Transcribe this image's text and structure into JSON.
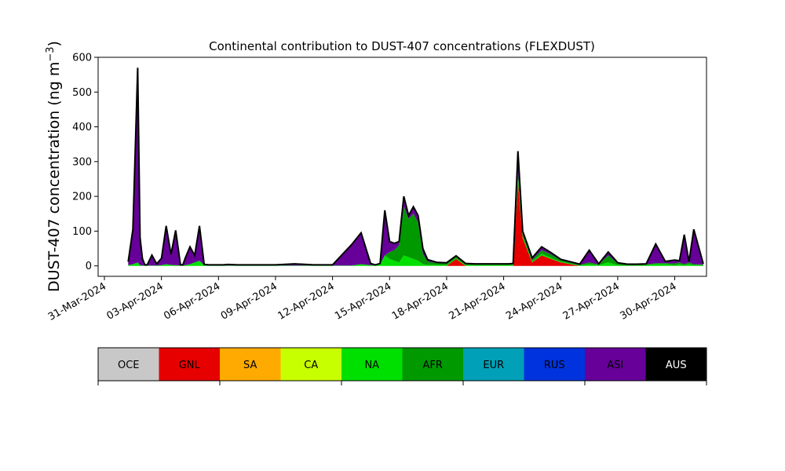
{
  "chart_data": {
    "type": "area",
    "stacked": true,
    "title": "Continental contribution to DUST-407 concentrations (FLEXDUST)",
    "ylabel": "DUST-407 concentration (ng m",
    "ylabel_sup": "−3",
    "ylabel_close": ")",
    "xlabel": "",
    "ylim": [
      -30,
      600
    ],
    "xlim": [
      "2024-03-31",
      "2024-05-02"
    ],
    "yticks": [
      0,
      100,
      200,
      300,
      400,
      500,
      600
    ],
    "xticks": [
      "31-Mar-2024",
      "03-Apr-2024",
      "06-Apr-2024",
      "09-Apr-2024",
      "12-Apr-2024",
      "15-Apr-2024",
      "18-Apr-2024",
      "21-Apr-2024",
      "24-Apr-2024",
      "27-Apr-2024",
      "30-Apr-2024"
    ],
    "grid": false,
    "colorbar_legend": [
      {
        "name": "OCE",
        "color": "#c8c8c8",
        "text_color": "#000000"
      },
      {
        "name": "GNL",
        "color": "#e60000",
        "text_color": "#000000"
      },
      {
        "name": "SA",
        "color": "#ffaa00",
        "text_color": "#000000"
      },
      {
        "name": "CA",
        "color": "#c8ff00",
        "text_color": "#000000"
      },
      {
        "name": "NA",
        "color": "#00e000",
        "text_color": "#000000"
      },
      {
        "name": "AFR",
        "color": "#009900",
        "text_color": "#000000"
      },
      {
        "name": "EUR",
        "color": "#00a0b8",
        "text_color": "#000000"
      },
      {
        "name": "RUS",
        "color": "#0033dd",
        "text_color": "#000000"
      },
      {
        "name": "ASI",
        "color": "#660099",
        "text_color": "#000000"
      },
      {
        "name": "AUS",
        "color": "#000000",
        "text_color": "#ffffff"
      }
    ],
    "x_dates": [
      "2024-04-01T06",
      "2024-04-01T12",
      "2024-04-01T18",
      "2024-04-01T21",
      "2024-04-02T00",
      "2024-04-02T03",
      "2024-04-02T06",
      "2024-04-02T12",
      "2024-04-02T18",
      "2024-04-03T00",
      "2024-04-03T06",
      "2024-04-03T12",
      "2024-04-03T18",
      "2024-04-04T00",
      "2024-04-04T03",
      "2024-04-04T06",
      "2024-04-04T12",
      "2024-04-04T18",
      "2024-04-05T00",
      "2024-04-05T06",
      "2024-04-05T12",
      "2024-04-05T18",
      "2024-04-06T00",
      "2024-04-06T06",
      "2024-04-06T12",
      "2024-04-07T00",
      "2024-04-07T12",
      "2024-04-08T00",
      "2024-04-08T12",
      "2024-04-09T00",
      "2024-04-10T00",
      "2024-04-11T00",
      "2024-04-12T00",
      "2024-04-13T00",
      "2024-04-13T12",
      "2024-04-14T00",
      "2024-04-14T06",
      "2024-04-14T12",
      "2024-04-14T18",
      "2024-04-15T00",
      "2024-04-15T06",
      "2024-04-15T12",
      "2024-04-15T18",
      "2024-04-16T00",
      "2024-04-16T06",
      "2024-04-16T12",
      "2024-04-16T18",
      "2024-04-17T00",
      "2024-04-17T12",
      "2024-04-18T00",
      "2024-04-18T12",
      "2024-04-19T00",
      "2024-04-19T12",
      "2024-04-20T00",
      "2024-04-20T12",
      "2024-04-21T00",
      "2024-04-21T06",
      "2024-04-21T12",
      "2024-04-21T18",
      "2024-04-22T00",
      "2024-04-22T12",
      "2024-04-23T00",
      "2024-04-23T12",
      "2024-04-24T00",
      "2024-04-25T00",
      "2024-04-25T12",
      "2024-04-26T00",
      "2024-04-26T12",
      "2024-04-27T00",
      "2024-04-27T12",
      "2024-04-28T00",
      "2024-04-28T12",
      "2024-04-29T00",
      "2024-04-29T12",
      "2024-04-30T00",
      "2024-04-30T06",
      "2024-04-30T12",
      "2024-04-30T18",
      "2024-05-01T00",
      "2024-05-01T12"
    ],
    "series": [
      {
        "name": "GNL",
        "values": [
          0,
          0,
          0,
          0,
          0,
          0,
          0,
          0,
          0,
          0,
          0,
          0,
          0,
          0,
          0,
          0,
          0,
          0,
          0,
          0,
          0,
          0,
          0,
          0,
          0,
          0,
          0,
          0,
          0,
          0,
          0,
          0,
          0,
          0,
          0,
          0,
          0,
          0,
          0,
          0,
          0,
          0,
          0,
          0,
          0,
          0,
          0,
          0,
          0,
          0,
          20,
          0,
          0,
          0,
          0,
          0,
          0,
          0,
          240,
          80,
          10,
          30,
          20,
          10,
          0,
          0,
          0,
          0,
          0,
          0,
          0,
          0,
          0,
          0,
          0,
          0,
          0,
          0,
          0,
          0
        ]
      },
      {
        "name": "NA",
        "values": [
          2,
          5,
          10,
          2,
          1,
          1,
          1,
          1,
          1,
          2,
          5,
          3,
          2,
          1,
          1,
          2,
          5,
          10,
          15,
          2,
          1,
          1,
          1,
          1,
          1,
          1,
          1,
          1,
          1,
          1,
          1,
          1,
          1,
          1,
          5,
          2,
          1,
          5,
          30,
          20,
          15,
          10,
          30,
          25,
          20,
          15,
          5,
          3,
          3,
          2,
          2,
          2,
          2,
          2,
          2,
          2,
          2,
          3,
          10,
          5,
          3,
          5,
          3,
          2,
          1,
          5,
          2,
          10,
          2,
          1,
          1,
          2,
          5,
          5,
          2,
          5,
          2,
          5,
          2,
          2
        ]
      },
      {
        "name": "AFR",
        "values": [
          0,
          0,
          0,
          0,
          0,
          0,
          0,
          0,
          0,
          0,
          0,
          0,
          0,
          0,
          0,
          0,
          0,
          0,
          0,
          0,
          0,
          0,
          0,
          0,
          0,
          0,
          0,
          0,
          0,
          0,
          0,
          0,
          0,
          0,
          0,
          0,
          0,
          0,
          0,
          20,
          30,
          50,
          140,
          110,
          130,
          110,
          30,
          10,
          5,
          5,
          5,
          3,
          2,
          2,
          2,
          2,
          2,
          2,
          20,
          10,
          5,
          10,
          10,
          5,
          2,
          5,
          2,
          20,
          5,
          2,
          2,
          2,
          3,
          3,
          5,
          5,
          3,
          5,
          3,
          2
        ]
      },
      {
        "name": "ASI",
        "values": [
          10,
          100,
          560,
          80,
          20,
          2,
          2,
          30,
          5,
          20,
          110,
          30,
          100,
          2,
          2,
          20,
          50,
          20,
          100,
          2,
          2,
          2,
          2,
          2,
          3,
          2,
          2,
          2,
          2,
          2,
          5,
          2,
          2,
          60,
          90,
          5,
          2,
          2,
          130,
          30,
          20,
          10,
          30,
          10,
          20,
          20,
          15,
          5,
          2,
          2,
          2,
          2,
          2,
          2,
          2,
          2,
          2,
          2,
          60,
          5,
          5,
          10,
          5,
          2,
          2,
          35,
          2,
          10,
          2,
          2,
          2,
          2,
          55,
          5,
          10,
          5,
          85,
          2,
          100,
          2
        ]
      }
    ]
  }
}
